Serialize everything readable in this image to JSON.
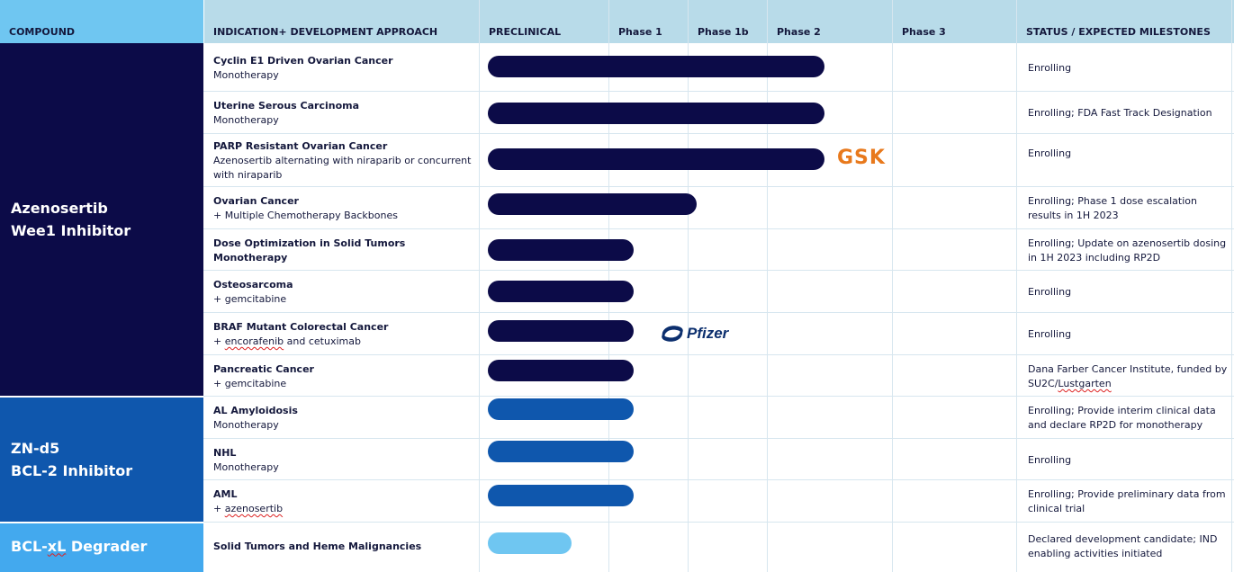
{
  "header": {
    "compound": "COMPOUND",
    "indication": "INDICATION+ DEVELOPMENT APPROACH",
    "preclinical": "PRECLINICAL",
    "phase1": "Phase 1",
    "phase1b": "Phase 1b",
    "phase2": "Phase 2",
    "phase3": "Phase 3",
    "status": "STATUS / EXPECTED MILESTONES"
  },
  "compounds": [
    {
      "line1": "Azenosertib",
      "line2": "Wee1 Inhibitor",
      "color": "#0c0b48"
    },
    {
      "line1": "ZN-d5",
      "line2": "BCL-2 Inhibitor",
      "color": "#0f57ad"
    },
    {
      "line1_a": "BCL-",
      "line1_b": "xL",
      "line1_c": " Degrader",
      "color": "#43a9ee"
    }
  ],
  "rows": [
    {
      "title": "Cyclin E1 Driven Ovarian Cancer",
      "approach": "Monotherapy",
      "stage": "Phase 2",
      "progress": 0.97,
      "status": "Enrolling"
    },
    {
      "title": "Uterine Serous Carcinoma",
      "approach": "Monotherapy",
      "stage": "Phase 2",
      "progress": 0.97,
      "status": "Enrolling; FDA Fast Track Designation"
    },
    {
      "title": "PARP Resistant Ovarian Cancer",
      "approach": "Azenosertib alternating with niraparib or concurrent with niraparib",
      "stage": "Phase 2",
      "progress": 0.97,
      "status": "Enrolling",
      "partner": "GSK"
    },
    {
      "title": "Ovarian Cancer",
      "approach": "+ Multiple Chemotherapy Backbones",
      "stage": "Phase 1b",
      "progress": 0.6,
      "status": "Enrolling; Phase 1 dose escalation results in 1H 2023"
    },
    {
      "title": "Dose Optimization in Solid Tumors",
      "approach": "Monotherapy",
      "approach_bold": true,
      "stage": "Phase 1",
      "progress": 0.42,
      "status": "Enrolling; Update on azenosertib dosing in 1H 2023 including RP2D"
    },
    {
      "title": "Osteosarcoma",
      "approach": "+ gemcitabine",
      "stage": "Phase 1",
      "progress": 0.42,
      "status": "Enrolling"
    },
    {
      "title": "BRAF Mutant Colorectal Cancer",
      "approach_a": "+ ",
      "approach_b": "encorafenib",
      "approach_c": " and cetuximab",
      "stage": "Phase 1",
      "progress": 0.42,
      "status": "Enrolling",
      "partner": "Pfizer"
    },
    {
      "title": "Pancreatic Cancer",
      "approach": "+ gemcitabine",
      "stage": "Phase 1",
      "progress": 0.42,
      "status_a": "Dana Farber Cancer Institute, funded by SU2C/",
      "status_b": "Lustgarten"
    },
    {
      "title": "AL Amyloidosis",
      "approach": "Monotherapy",
      "stage": "Phase 1",
      "progress": 0.42,
      "status": "Enrolling; Provide interim clinical data and declare RP2D  for monotherapy"
    },
    {
      "title": "NHL",
      "approach": "Monotherapy",
      "stage": "Phase 1",
      "progress": 0.42,
      "status": "Enrolling"
    },
    {
      "title": "AML",
      "approach_a": "+ ",
      "approach_b": "azenosertib",
      "approach_c": "",
      "stage": "Phase 1",
      "progress": 0.42,
      "status": "Enrolling; Provide preliminary data from clinical trial"
    },
    {
      "title": "Solid Tumors and Heme Malignancies",
      "approach": "",
      "stage": "Preclinical",
      "progress": 0.24,
      "status": "Declared development candidate; IND enabling activities initiated"
    }
  ],
  "partners": {
    "gsk": "GSK",
    "pfizer": "Pfizer"
  },
  "colors": {
    "navy": "#0c0b48",
    "blue": "#0f57ad",
    "light": "#6fc6f1",
    "header": "#b8dbe9",
    "gsk": "#e8791c"
  }
}
